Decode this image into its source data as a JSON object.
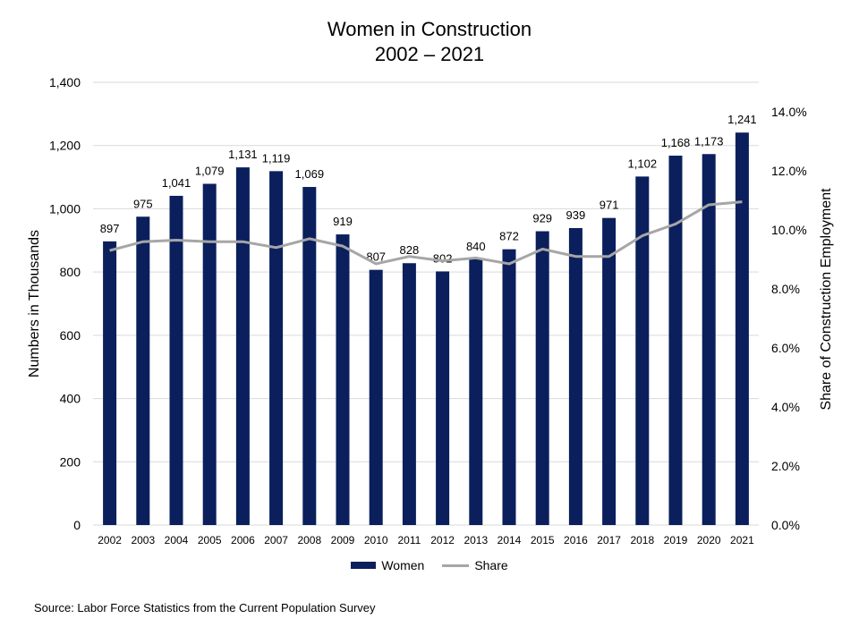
{
  "chart_data": {
    "type": "bar",
    "title_lines": [
      "Women in Construction",
      "2002 – 2021"
    ],
    "categories": [
      "2002",
      "2003",
      "2004",
      "2005",
      "2006",
      "2007",
      "2008",
      "2009",
      "2010",
      "2011",
      "2012",
      "2013",
      "2014",
      "2015",
      "2016",
      "2017",
      "2018",
      "2019",
      "2020",
      "2021"
    ],
    "series": [
      {
        "name": "Women",
        "type": "bar",
        "axis": "left",
        "color": "#0a1f5c",
        "values": [
          897,
          975,
          1041,
          1079,
          1131,
          1119,
          1069,
          919,
          807,
          828,
          802,
          840,
          872,
          929,
          939,
          971,
          1102,
          1168,
          1173,
          1241
        ],
        "labels": [
          "897",
          "975",
          "1,041",
          "1,079",
          "1,131",
          "1,119",
          "1,069",
          "919",
          "807",
          "828",
          "802",
          "840",
          "872",
          "929",
          "939",
          "971",
          "1,102",
          "1,168",
          "1,173",
          "1,241"
        ]
      },
      {
        "name": "Share",
        "type": "line",
        "axis": "right",
        "color": "#a6a6a6",
        "values": [
          9.3,
          9.6,
          9.65,
          9.6,
          9.6,
          9.4,
          9.7,
          9.45,
          8.85,
          9.1,
          8.95,
          9.05,
          8.85,
          9.35,
          9.1,
          9.1,
          9.8,
          10.2,
          10.85,
          10.95
        ]
      }
    ],
    "y_left": {
      "label": "Numbers in Thousands",
      "range": [
        0,
        1400
      ],
      "ticks": [
        0,
        200,
        400,
        600,
        800,
        1000,
        1200,
        1400
      ],
      "tick_labels": [
        "0",
        "200",
        "400",
        "600",
        "800",
        "1,000",
        "1,200",
        "1,400"
      ]
    },
    "y_right": {
      "label": "Share of Construction Employment",
      "range": [
        0,
        15
      ],
      "ticks": [
        0,
        2,
        4,
        6,
        8,
        10,
        12,
        14
      ],
      "tick_labels": [
        "0.0%",
        "2.0%",
        "4.0%",
        "6.0%",
        "8.0%",
        "10.0%",
        "12.0%",
        "14.0%"
      ]
    },
    "grid": true,
    "legend_position": "bottom"
  },
  "source": "Source: Labor Force Statistics from the Current Population Survey"
}
